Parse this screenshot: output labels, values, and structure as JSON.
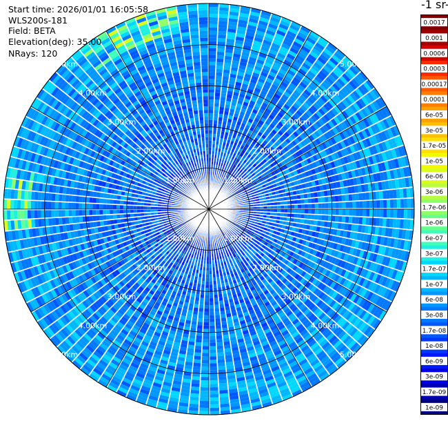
{
  "header": {
    "start_time": "Start time: 2026/01/01 16:05:58",
    "instrument": "WLS200s-181",
    "field": "Field: BETA",
    "elevation": "Elevation(deg): 35.00",
    "nrays": "NRays: 120"
  },
  "chart_data": {
    "type": "heatmap",
    "projection": "polar (PPI scan)",
    "field": "BETA",
    "n_rays": 120,
    "max_range_km": 5.0,
    "range_rings_km": [
      1.0,
      2.0,
      3.0,
      4.0,
      5.0
    ],
    "ring_labels": [
      "1.00km",
      "2.00km",
      "3.00km",
      "4.00km",
      "5.00km"
    ],
    "colorbar": {
      "title": "-1 sr-",
      "labels": [
        "0.0017",
        "0.001",
        "0.0006",
        "0.0003",
        "0.00017",
        "0.0001",
        "6e-05",
        "3e-05",
        "1.7e-05",
        "1e-05",
        "6e-06",
        "3e-06",
        "1.7e-06",
        "1e-06",
        "6e-07",
        "3e-07",
        "1.7e-07",
        "1e-07",
        "6e-08",
        "3e-08",
        "1.7e-08",
        "1e-08",
        "6e-09",
        "3e-09",
        "1.7e-09",
        "1e-09"
      ],
      "colors": [
        "#7f0000",
        "#a00000",
        "#d40000",
        "#ff2a00",
        "#ff5a00",
        "#ff8000",
        "#ffa200",
        "#ffc000",
        "#ffe000",
        "#f4f800",
        "#d8ff20",
        "#b8ff40",
        "#90ff68",
        "#68ff90",
        "#40ffb8",
        "#20f0e0",
        "#00d8ff",
        "#00b8ff",
        "#0098ff",
        "#0078ff",
        "#0058ff",
        "#0038ff",
        "#0018ff",
        "#0000e0",
        "#0000b0",
        "#000080"
      ]
    },
    "typical_value_range": [
      "1e-08",
      "1.7e-07"
    ],
    "notes": "Mostly 3e-08 to 1e-07 (blue to cyan); higher values (~1.7e-06, green/yellow) near outer edge at north-northwest and west."
  }
}
